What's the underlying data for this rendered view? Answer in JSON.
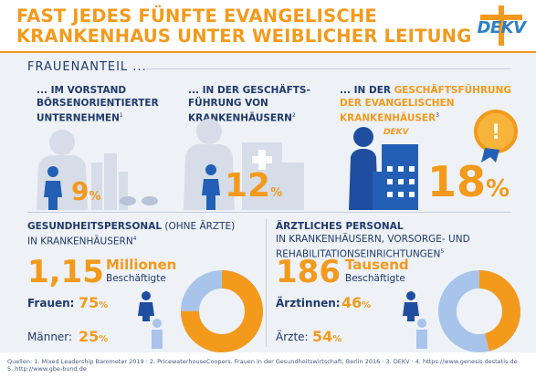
{
  "header": {
    "title_line1": "FAST JEDES FÜNFTE EVANGELISCHE",
    "title_line2": "KRANKENHAUS UNTER WEIBLICHER LEITUNG",
    "logo_text": "DEKV"
  },
  "section": {
    "title": "FRAUENANTEIL ..."
  },
  "stats": [
    {
      "line1": "... IM VORSTAND",
      "line2": "BÖRSENORIENTIERTER",
      "line3": "UNTERNEHMEN",
      "ref": "1",
      "value": "9",
      "unit": "%"
    },
    {
      "line1": "... IN DER GESCHÄFTS-",
      "line2": "FÜHRUNG VON",
      "line3": "KRANKENHÄUSERN",
      "ref": "2",
      "value": "12",
      "unit": "%"
    },
    {
      "line1_pre": "... IN DER ",
      "line1_hl": "GESCHÄFTSFÜHRUNG",
      "line2": "DER EVANGELISCHEN",
      "line3": "KRANKENHÄUSER",
      "ref": "3",
      "value": "18",
      "unit": "%",
      "badge_icon": "exclamation-icon",
      "building_logo": "DEKV"
    }
  ],
  "staff": {
    "title_bold": "GESUNDHEITSPERSONAL",
    "title_rest": " (OHNE ÄRZTE)",
    "title_line2": "IN KRANKENHÄUSERN",
    "ref": "4",
    "number": "1,15",
    "unit": "Millionen",
    "sub": "Beschäftigte",
    "women_label": "Frauen:",
    "women_value": "75",
    "men_label": "Männer:",
    "men_value": "25",
    "pct_sign": "%",
    "women_share": 75
  },
  "doctors": {
    "title_bold": "ÄRZTLICHES PERSONAL",
    "title_line2": "IN KRANKENHÄUSERN, VORSORGE- UND",
    "title_line3": "REHABILITATIONSEINRICHTUNGEN",
    "ref": "5",
    "number": "186",
    "unit": "Tausend",
    "sub": "Beschäftigte",
    "women_label": "Ärztinnen:",
    "women_value": "46",
    "men_label": "Ärzte:",
    "men_value": "54",
    "pct_sign": "%",
    "women_share": 46
  },
  "colors": {
    "orange": "#f39a1c",
    "navy": "#1f3a6b",
    "blue": "#2360b5",
    "light_blue": "#a9c4ea",
    "panel": "#eef1f6"
  },
  "footer": {
    "line1": "Quellen: 1. Mixed Leadership Barometer 2019 · 2. PricewaterhouseCoopers. Frauen in der Gesundheitswirtschaft, Berlin 2016 · 3. DEKV · 4. https://www.genesis.destatis.de",
    "line2": "5. http://www.gbe-bund.de"
  }
}
